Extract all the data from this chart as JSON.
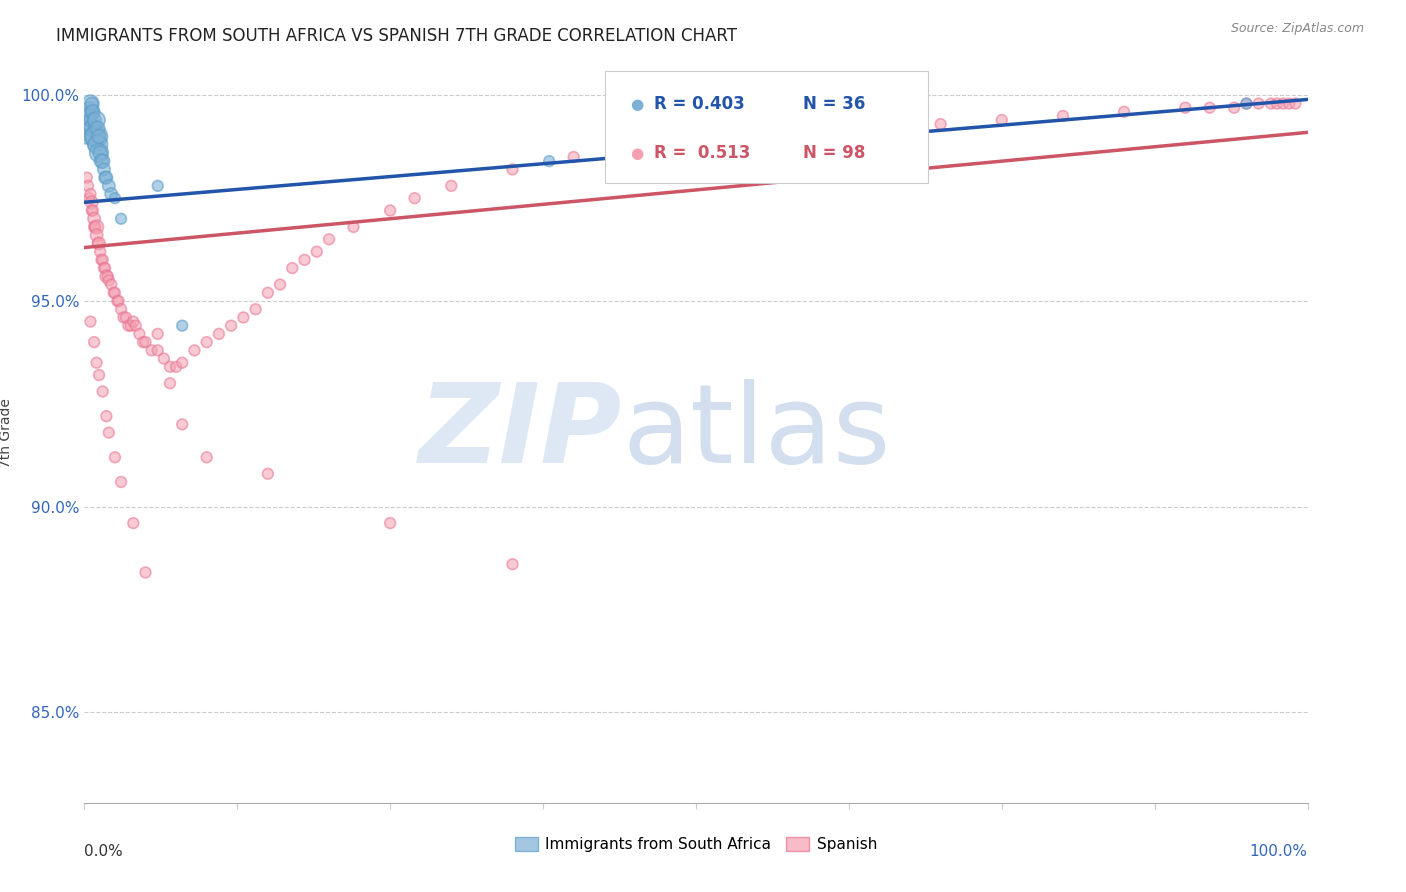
{
  "title": "IMMIGRANTS FROM SOUTH AFRICA VS SPANISH 7TH GRADE CORRELATION CHART",
  "source": "Source: ZipAtlas.com",
  "ylabel": "7th Grade",
  "xlim": [
    0.0,
    1.0
  ],
  "ylim": [
    0.828,
    1.008
  ],
  "yticks": [
    0.85,
    0.9,
    0.95,
    1.0
  ],
  "ytick_labels": [
    "85.0%",
    "90.0%",
    "95.0%",
    "100.0%"
  ],
  "xtick_left_label": "0.0%",
  "xtick_right_label": "100.0%",
  "blue_color": "#7EB0D5",
  "blue_edge_color": "#5A9EC9",
  "pink_color": "#F4A0B0",
  "pink_edge_color": "#E87090",
  "blue_line_color": "#2255AA",
  "pink_line_color": "#CC5566",
  "legend_r_blue": "R = 0.403",
  "legend_n_blue": "N = 36",
  "legend_r_pink": "R =  0.513",
  "legend_n_pink": "N = 98",
  "blue_line_x": [
    0.0,
    1.0
  ],
  "blue_line_y": [
    0.974,
    0.999
  ],
  "pink_line_x": [
    0.0,
    1.0
  ],
  "pink_line_y": [
    0.963,
    0.991
  ],
  "blue_x": [
    0.002,
    0.003,
    0.004,
    0.004,
    0.005,
    0.005,
    0.006,
    0.006,
    0.007,
    0.007,
    0.008,
    0.008,
    0.009,
    0.009,
    0.01,
    0.01,
    0.011,
    0.011,
    0.012,
    0.012,
    0.013,
    0.014,
    0.015,
    0.016,
    0.017,
    0.018,
    0.02,
    0.022,
    0.025,
    0.03,
    0.06,
    0.08,
    0.38,
    0.5,
    0.68,
    0.95
  ],
  "blue_y": [
    0.99,
    0.992,
    0.994,
    0.996,
    0.994,
    0.998,
    0.996,
    0.998,
    0.992,
    0.996,
    0.99,
    0.994,
    0.988,
    0.992,
    0.99,
    0.994,
    0.988,
    0.992,
    0.986,
    0.99,
    0.986,
    0.984,
    0.984,
    0.982,
    0.98,
    0.98,
    0.978,
    0.976,
    0.975,
    0.97,
    0.978,
    0.944,
    0.984,
    0.984,
    0.988,
    0.998
  ],
  "blue_sizes": [
    120,
    100,
    80,
    200,
    100,
    150,
    100,
    80,
    150,
    100,
    200,
    100,
    120,
    100,
    250,
    150,
    200,
    100,
    180,
    100,
    100,
    100,
    100,
    80,
    80,
    80,
    80,
    80,
    60,
    60,
    60,
    60,
    60,
    60,
    60,
    60
  ],
  "pink_x": [
    0.002,
    0.003,
    0.004,
    0.005,
    0.006,
    0.006,
    0.007,
    0.008,
    0.008,
    0.009,
    0.01,
    0.01,
    0.011,
    0.012,
    0.013,
    0.014,
    0.015,
    0.016,
    0.017,
    0.018,
    0.019,
    0.02,
    0.022,
    0.024,
    0.025,
    0.027,
    0.028,
    0.03,
    0.032,
    0.034,
    0.036,
    0.038,
    0.04,
    0.042,
    0.045,
    0.048,
    0.05,
    0.055,
    0.06,
    0.065,
    0.07,
    0.075,
    0.08,
    0.09,
    0.1,
    0.11,
    0.12,
    0.13,
    0.14,
    0.15,
    0.16,
    0.17,
    0.18,
    0.19,
    0.2,
    0.22,
    0.25,
    0.27,
    0.3,
    0.35,
    0.4,
    0.45,
    0.5,
    0.55,
    0.6,
    0.65,
    0.7,
    0.75,
    0.8,
    0.85,
    0.9,
    0.92,
    0.94,
    0.95,
    0.96,
    0.97,
    0.975,
    0.98,
    0.985,
    0.99,
    0.005,
    0.008,
    0.01,
    0.012,
    0.015,
    0.018,
    0.02,
    0.025,
    0.03,
    0.04,
    0.05,
    0.06,
    0.07,
    0.08,
    0.1,
    0.15,
    0.25,
    0.35
  ],
  "pink_y": [
    0.98,
    0.978,
    0.975,
    0.976,
    0.974,
    0.972,
    0.972,
    0.97,
    0.968,
    0.968,
    0.968,
    0.966,
    0.964,
    0.964,
    0.962,
    0.96,
    0.96,
    0.958,
    0.958,
    0.956,
    0.956,
    0.955,
    0.954,
    0.952,
    0.952,
    0.95,
    0.95,
    0.948,
    0.946,
    0.946,
    0.944,
    0.944,
    0.945,
    0.944,
    0.942,
    0.94,
    0.94,
    0.938,
    0.938,
    0.936,
    0.934,
    0.934,
    0.935,
    0.938,
    0.94,
    0.942,
    0.944,
    0.946,
    0.948,
    0.952,
    0.954,
    0.958,
    0.96,
    0.962,
    0.965,
    0.968,
    0.972,
    0.975,
    0.978,
    0.982,
    0.985,
    0.988,
    0.989,
    0.99,
    0.991,
    0.992,
    0.993,
    0.994,
    0.995,
    0.996,
    0.997,
    0.997,
    0.997,
    0.998,
    0.998,
    0.998,
    0.998,
    0.998,
    0.998,
    0.998,
    0.945,
    0.94,
    0.935,
    0.932,
    0.928,
    0.922,
    0.918,
    0.912,
    0.906,
    0.896,
    0.884,
    0.942,
    0.93,
    0.92,
    0.912,
    0.908,
    0.896,
    0.886
  ],
  "pink_sizes": [
    60,
    60,
    60,
    60,
    80,
    60,
    60,
    80,
    60,
    60,
    100,
    80,
    60,
    80,
    60,
    60,
    60,
    60,
    60,
    80,
    60,
    60,
    60,
    60,
    60,
    60,
    60,
    60,
    60,
    60,
    60,
    60,
    60,
    60,
    60,
    60,
    60,
    60,
    60,
    60,
    60,
    60,
    60,
    60,
    60,
    60,
    60,
    60,
    60,
    60,
    60,
    60,
    60,
    60,
    60,
    60,
    60,
    60,
    60,
    60,
    60,
    60,
    60,
    60,
    60,
    60,
    60,
    60,
    60,
    60,
    60,
    60,
    60,
    60,
    60,
    60,
    60,
    60,
    60,
    60,
    60,
    60,
    60,
    60,
    60,
    60,
    60,
    60,
    60,
    60,
    60,
    60,
    60,
    60,
    60,
    60,
    60,
    60
  ]
}
